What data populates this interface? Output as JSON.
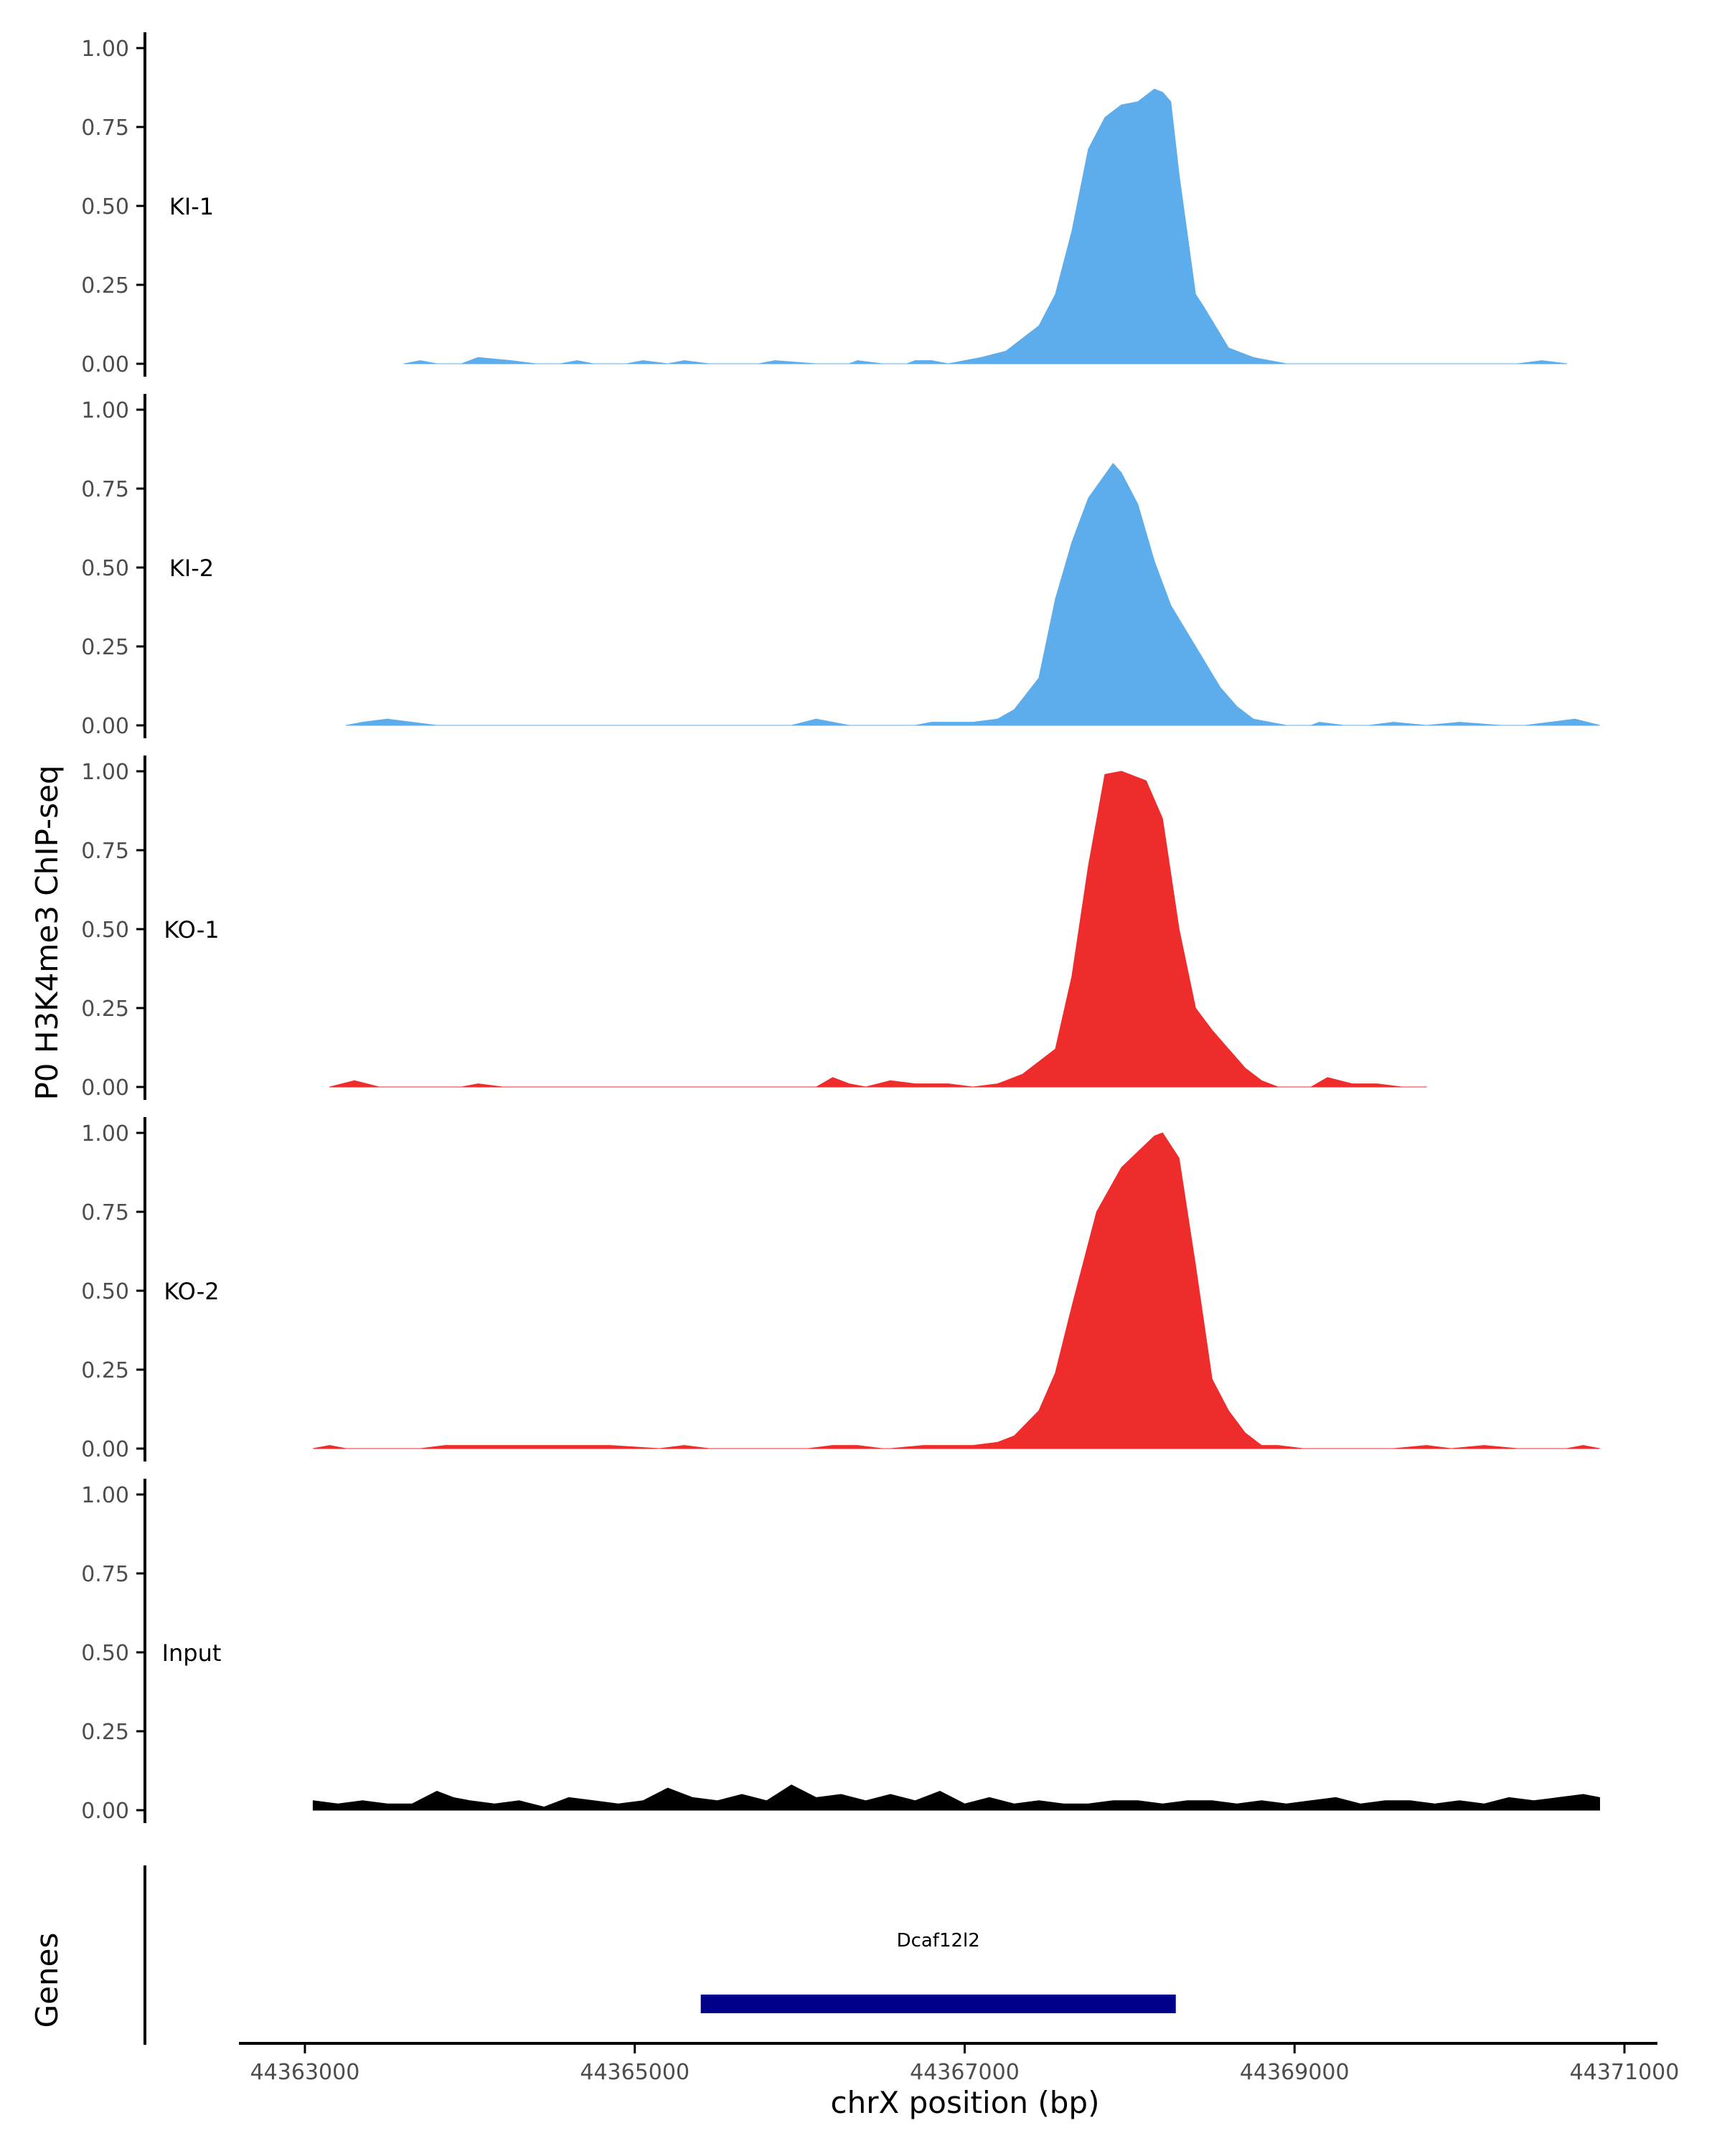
{
  "chart_data": {
    "type": "area",
    "ylabel": "P0 H3K4me3 ChIP-seq",
    "xlabel": "chrX position (bp)",
    "xlim": [
      44362600,
      44371200
    ],
    "ylim": [
      0,
      1
    ],
    "y_ticks": [
      "0.00",
      "0.25",
      "0.50",
      "0.75",
      "1.00"
    ],
    "y_tick_values": [
      0,
      0.25,
      0.5,
      0.75,
      1.0
    ],
    "x_ticks": [
      "44363000",
      "44365000",
      "44367000",
      "44369000",
      "44371000"
    ],
    "x_tick_values": [
      44363000,
      44365000,
      44367000,
      44369000,
      44371000
    ],
    "grid": false,
    "series": [
      {
        "name": "KI-1",
        "color": "#5DADEC",
        "x": [
          44363600,
          44363700,
          44363800,
          44363950,
          44364050,
          44364250,
          44364400,
          44364550,
          44364650,
          44364750,
          44364950,
          44365050,
          44365200,
          44365300,
          44365450,
          44365600,
          44365750,
          44365850,
          44366100,
          44366200,
          44366300,
          44366350,
          44366500,
          44366550,
          44366650,
          44366700,
          44366800,
          44366900,
          44367000,
          44367100,
          44367250,
          44367350,
          44367450,
          44367550,
          44367650,
          44367750,
          44367850,
          44367950,
          44368050,
          44368150,
          44368200,
          44368250,
          44368300,
          44368400,
          44368450,
          44368600,
          44368750,
          44368850,
          44368950,
          44369150,
          44369250,
          44370350,
          44370500,
          44370650
        ],
        "y": [
          0,
          0.01,
          0,
          0,
          0.02,
          0.01,
          0,
          0,
          0.01,
          0,
          0,
          0.01,
          0,
          0.01,
          0,
          0,
          0,
          0.01,
          0,
          0,
          0,
          0.01,
          0,
          0,
          0,
          0.01,
          0.01,
          0,
          0.01,
          0.02,
          0.04,
          0.08,
          0.12,
          0.22,
          0.42,
          0.68,
          0.78,
          0.82,
          0.83,
          0.87,
          0.86,
          0.83,
          0.6,
          0.22,
          0.18,
          0.05,
          0.02,
          0.01,
          0,
          0,
          0,
          0,
          0.01,
          0
        ],
        "points_note": ""
      },
      {
        "name": "KI-2",
        "color": "#5DADEC",
        "x": [
          44363250,
          44363350,
          44363500,
          44363650,
          44363800,
          44365950,
          44366100,
          44366200,
          44366300,
          44366350,
          44366700,
          44366800,
          44366900,
          44367050,
          44367200,
          44367300,
          44367450,
          44367550,
          44367650,
          44367750,
          44367900,
          44367950,
          44368050,
          44368150,
          44368250,
          44368400,
          44368550,
          44368650,
          44368750,
          44368850,
          44368950,
          44369100,
          44369150,
          44369300,
          44369450,
          44369600,
          44369800,
          44370000,
          44370250,
          44370400,
          44370550,
          44370700,
          44370850
        ],
        "y": [
          0,
          0.01,
          0.02,
          0.01,
          0,
          0,
          0.02,
          0.01,
          0,
          0,
          0,
          0.01,
          0.01,
          0.01,
          0.02,
          0.05,
          0.15,
          0.4,
          0.58,
          0.72,
          0.83,
          0.8,
          0.7,
          0.52,
          0.38,
          0.25,
          0.12,
          0.06,
          0.02,
          0.01,
          0,
          0,
          0.01,
          0,
          0,
          0.01,
          0,
          0.01,
          0,
          0,
          0.01,
          0.02,
          0
        ],
        "points_note": ""
      },
      {
        "name": "KO-1",
        "color": "#EE2C2C",
        "x": [
          44363150,
          44363300,
          44363450,
          44363950,
          44364050,
          44364200,
          44366100,
          44366200,
          44366300,
          44366400,
          44366550,
          44366700,
          44366900,
          44367050,
          44367200,
          44367350,
          44367550,
          44367650,
          44367750,
          44367850,
          44367950,
          44368000,
          44368100,
          44368200,
          44368300,
          44368400,
          44368500,
          44368600,
          44368700,
          44368800,
          44368900,
          44369000,
          44369100,
          44369200,
          44369350,
          44369500,
          44369650,
          44369800
        ],
        "y": [
          0,
          0.02,
          0,
          0,
          0.01,
          0,
          0,
          0.03,
          0.01,
          0,
          0.02,
          0.01,
          0.01,
          0,
          0.01,
          0.04,
          0.12,
          0.35,
          0.7,
          0.99,
          1.0,
          0.99,
          0.97,
          0.85,
          0.5,
          0.25,
          0.18,
          0.12,
          0.06,
          0.02,
          0,
          0,
          0,
          0.03,
          0.01,
          0.01,
          0,
          0
        ],
        "points_note": ""
      },
      {
        "name": "KO-2",
        "color": "#EE2C2C",
        "x": [
          44363050,
          44363150,
          44363250,
          44363700,
          44363850,
          44364150,
          44364450,
          44364650,
          44364850,
          44365150,
          44365300,
          44365450,
          44366050,
          44366200,
          44366350,
          44366500,
          44366550,
          44366750,
          44366900,
          44367050,
          44367200,
          44367300,
          44367450,
          44367550,
          44367650,
          44367800,
          44367950,
          44368050,
          44368150,
          44368200,
          44368300,
          44368400,
          44368500,
          44368600,
          44368700,
          44368800,
          44368900,
          44369050,
          44369200,
          44369600,
          44369800,
          44369950,
          44370150,
          44370350,
          44370650,
          44370750,
          44370850
        ],
        "y": [
          0,
          0.01,
          0,
          0,
          0.01,
          0.01,
          0.01,
          0.01,
          0.01,
          0,
          0.01,
          0,
          0,
          0.01,
          0.01,
          0,
          0,
          0.01,
          0.01,
          0.01,
          0.02,
          0.04,
          0.12,
          0.24,
          0.45,
          0.75,
          0.89,
          0.94,
          0.99,
          1.0,
          0.92,
          0.58,
          0.22,
          0.12,
          0.05,
          0.01,
          0.01,
          0,
          0,
          0,
          0.01,
          0,
          0.01,
          0,
          0,
          0.01,
          0
        ],
        "points_note": ""
      },
      {
        "name": "Input",
        "color": "#000000",
        "x": [
          44363050,
          44363200,
          44363350,
          44363500,
          44363650,
          44363800,
          44363900,
          44364000,
          44364150,
          44364300,
          44364450,
          44364600,
          44364750,
          44364900,
          44365050,
          44365200,
          44365350,
          44365500,
          44365650,
          44365800,
          44365950,
          44366100,
          44366250,
          44366400,
          44366550,
          44366700,
          44366850,
          44367000,
          44367150,
          44367300,
          44367450,
          44367600,
          44367750,
          44367900,
          44368050,
          44368200,
          44368350,
          44368500,
          44368650,
          44368800,
          44368950,
          44369100,
          44369250,
          44369400,
          44369550,
          44369700,
          44369850,
          44370000,
          44370150,
          44370300,
          44370450,
          44370600,
          44370750,
          44370850
        ],
        "y": [
          0.03,
          0.02,
          0.03,
          0.02,
          0.02,
          0.06,
          0.04,
          0.03,
          0.02,
          0.03,
          0.01,
          0.04,
          0.03,
          0.02,
          0.03,
          0.07,
          0.04,
          0.03,
          0.05,
          0.03,
          0.08,
          0.04,
          0.05,
          0.03,
          0.05,
          0.03,
          0.06,
          0.02,
          0.04,
          0.02,
          0.03,
          0.02,
          0.02,
          0.03,
          0.03,
          0.02,
          0.03,
          0.03,
          0.02,
          0.03,
          0.02,
          0.03,
          0.04,
          0.02,
          0.03,
          0.03,
          0.02,
          0.03,
          0.02,
          0.04,
          0.03,
          0.04,
          0.05,
          0.04
        ],
        "points_note": ""
      }
    ],
    "genes_track": {
      "label": "Genes",
      "genes": [
        {
          "name": "Dcaf12l2",
          "start": 44365400,
          "end": 44368280,
          "color": "#00008B"
        }
      ]
    }
  }
}
